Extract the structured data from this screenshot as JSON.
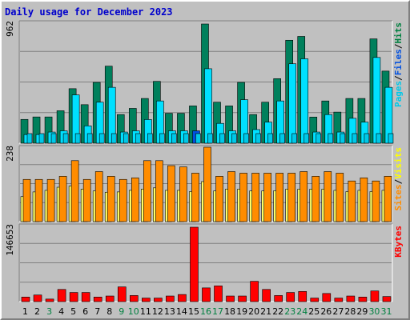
{
  "chart_data": {
    "type": "bar",
    "title": "Daily usage for December 2023",
    "categories": [
      "1",
      "2",
      "3",
      "4",
      "5",
      "6",
      "7",
      "8",
      "9",
      "10",
      "11",
      "12",
      "13",
      "14",
      "15",
      "16",
      "17",
      "18",
      "19",
      "20",
      "21",
      "22",
      "23",
      "24",
      "25",
      "26",
      "27",
      "28",
      "29",
      "30",
      "31"
    ],
    "weekend_days": [
      "3",
      "9",
      "10",
      "16",
      "17",
      "23",
      "24",
      "30",
      "31"
    ],
    "panels": [
      {
        "id": "hits-files-pages",
        "max_label": "962",
        "ylim": [
          0,
          962
        ],
        "legend": [
          "Pages",
          "/",
          "Files",
          "/",
          "Hits"
        ],
        "series": [
          {
            "name": "Hits",
            "color": "#00805c",
            "values": [
              192,
              212,
              212,
              262,
              440,
              311,
              491,
              622,
              231,
              281,
              361,
              499,
              241,
              241,
              301,
              962,
              331,
              301,
              491,
              231,
              331,
              521,
              831,
              862,
              211,
              341,
              251,
              361,
              361,
              842,
              582
            ]
          },
          {
            "name": "Files",
            "color": "#00e0ff",
            "values": [
              70,
              70,
              90,
              100,
              390,
              140,
              331,
              451,
              90,
              100,
              191,
              341,
              100,
              100,
              100,
              601,
              160,
              100,
              351,
              110,
              170,
              341,
              641,
              681,
              90,
              231,
              90,
              201,
              170,
              692,
              451
            ]
          },
          {
            "name": "Pages",
            "color": "#00c8e8",
            "values": [
              0,
              0,
              0,
              0,
              0,
              0,
              0,
              0,
              0,
              0,
              0,
              0,
              0,
              0,
              0,
              0,
              0,
              0,
              0,
              0,
              0,
              0,
              0,
              0,
              0,
              0,
              0,
              0,
              0,
              0,
              0
            ]
          }
        ],
        "highlight": {
          "day": "15",
          "color": "#0050e0"
        }
      },
      {
        "id": "visits-sites",
        "max_label": "238",
        "ylim": [
          0,
          238
        ],
        "legend": [
          "Sites",
          "/",
          "Visits"
        ],
        "series": [
          {
            "name": "Visits",
            "color": "#ff8c00",
            "values": [
              135,
              135,
              135,
              145,
              195,
              135,
              160,
              145,
              135,
              140,
              195,
              195,
              179,
              175,
              155,
              238,
              145,
              160,
              155,
              155,
              155,
              155,
              155,
              160,
              145,
              160,
              155,
              130,
              140,
              130,
              145
            ]
          },
          {
            "name": "Sites",
            "color": "#ffff66",
            "values": [
              80,
              95,
              100,
              110,
              114,
              104,
              98,
              94,
              95,
              100,
              104,
              108,
              100,
              100,
              96,
              128,
              98,
              104,
              104,
              98,
              98,
              99,
              104,
              104,
              104,
              104,
              100,
              96,
              100,
              96,
              100
            ]
          }
        ]
      },
      {
        "id": "kbytes",
        "max_label": "146653",
        "ylim": [
          0,
          146653
        ],
        "legend": [
          "KBytes"
        ],
        "series": [
          {
            "name": "KBytes",
            "color": "#ff0000",
            "values": [
              9000,
              13000,
              5000,
              24000,
              18000,
              18000,
              9000,
              11000,
              29000,
              12000,
              7000,
              7000,
              11000,
              14000,
              146653,
              27000,
              31000,
              11000,
              11000,
              40000,
              24000,
              12000,
              18000,
              20000,
              7000,
              16000,
              7000,
              11000,
              9000,
              21000,
              10000
            ]
          }
        ]
      }
    ],
    "colors": {
      "background": "#c0c0c0",
      "title": "#0000ff",
      "weekday_label": "#000000",
      "weekend_label": "#008040",
      "pages_legend": "#00c8e8",
      "files_legend": "#0050e0",
      "hits_legend": "#008040",
      "sites_legend": "#ff8c00",
      "visits_legend": "#ffff00",
      "kbytes_legend": "#ff0000"
    }
  }
}
